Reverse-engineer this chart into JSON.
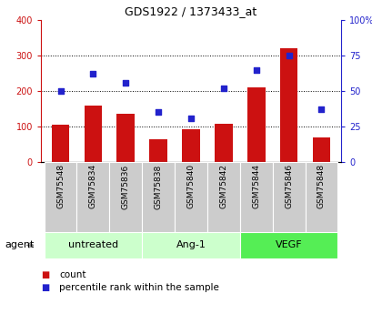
{
  "title": "GDS1922 / 1373433_at",
  "samples": [
    "GSM75548",
    "GSM75834",
    "GSM75836",
    "GSM75838",
    "GSM75840",
    "GSM75842",
    "GSM75844",
    "GSM75846",
    "GSM75848"
  ],
  "counts": [
    105,
    160,
    135,
    65,
    93,
    108,
    210,
    320,
    70
  ],
  "percentiles": [
    50,
    62,
    56,
    35,
    31,
    52,
    65,
    75,
    37
  ],
  "bar_color": "#cc1111",
  "marker_color": "#2222cc",
  "left_ylim": [
    0,
    400
  ],
  "right_ylim": [
    0,
    100
  ],
  "left_yticks": [
    0,
    100,
    200,
    300,
    400
  ],
  "right_yticks": [
    0,
    25,
    50,
    75,
    100
  ],
  "right_yticklabels": [
    "0",
    "25",
    "50",
    "75",
    "100%"
  ],
  "groups": [
    {
      "label": "untreated",
      "start": 0,
      "end": 2,
      "color": "#ccffcc"
    },
    {
      "label": "Ang-1",
      "start": 3,
      "end": 5,
      "color": "#ccffcc"
    },
    {
      "label": "VEGF",
      "start": 6,
      "end": 8,
      "color": "#55ee55"
    }
  ],
  "agent_label": "agent",
  "legend_count_label": "count",
  "legend_pct_label": "percentile rank within the sample",
  "tick_cell_color": "#cccccc",
  "grid_lines": [
    100,
    200,
    300
  ],
  "fig_width": 4.1,
  "fig_height": 3.45,
  "dpi": 100
}
